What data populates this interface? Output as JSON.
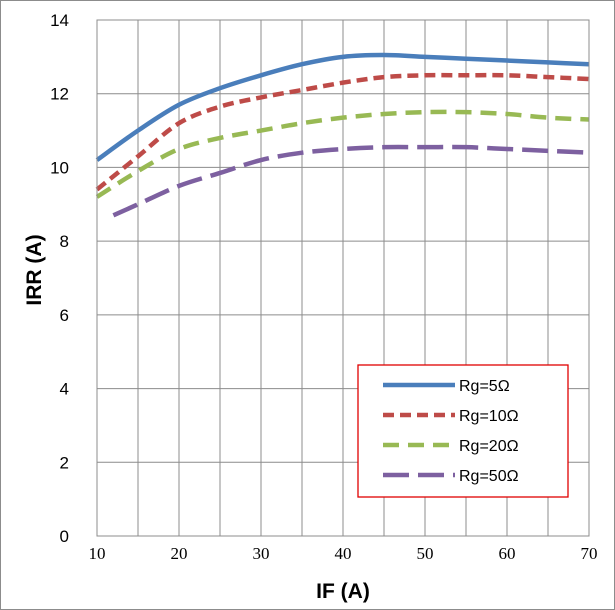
{
  "chart_data": {
    "type": "line",
    "xlabel": "IF  (A)",
    "ylabel": "IRR   (A)",
    "xlim": [
      10,
      70
    ],
    "ylim": [
      0,
      14
    ],
    "x_ticks": [
      "10",
      "20",
      "30",
      "40",
      "50",
      "60",
      "70"
    ],
    "y_ticks": [
      "0",
      "2",
      "4",
      "6",
      "8",
      "10",
      "12",
      "14"
    ],
    "grid": true,
    "legend_position": "bottom-right",
    "series": [
      {
        "name": "Rg=5Ω",
        "color": "#4a7ebb",
        "dash": "solid",
        "x": [
          10,
          15,
          20,
          25,
          30,
          35,
          40,
          45,
          50,
          55,
          60,
          65,
          70
        ],
        "y": [
          10.2,
          11.0,
          11.7,
          12.15,
          12.5,
          12.8,
          13.0,
          13.05,
          13.0,
          12.95,
          12.9,
          12.85,
          12.8
        ]
      },
      {
        "name": "Rg=10Ω",
        "color": "#be4b48",
        "dash": "short",
        "x": [
          10,
          15,
          20,
          25,
          30,
          35,
          40,
          45,
          50,
          55,
          60,
          65,
          70
        ],
        "y": [
          9.4,
          10.3,
          11.2,
          11.65,
          11.9,
          12.1,
          12.3,
          12.45,
          12.5,
          12.5,
          12.5,
          12.45,
          12.4
        ]
      },
      {
        "name": "Rg=20Ω",
        "color": "#98b954",
        "dash": "medium",
        "x": [
          10,
          15,
          20,
          25,
          30,
          35,
          40,
          45,
          50,
          55,
          60,
          65,
          70
        ],
        "y": [
          9.2,
          9.9,
          10.5,
          10.8,
          11.0,
          11.2,
          11.35,
          11.45,
          11.5,
          11.5,
          11.45,
          11.35,
          11.3
        ]
      },
      {
        "name": "Rg=50Ω",
        "color": "#7d60a0",
        "dash": "long",
        "x": [
          12,
          15,
          20,
          25,
          30,
          35,
          40,
          45,
          50,
          55,
          60,
          65,
          70
        ],
        "y": [
          8.7,
          9.0,
          9.5,
          9.85,
          10.2,
          10.4,
          10.5,
          10.55,
          10.55,
          10.55,
          10.5,
          10.45,
          10.4
        ]
      }
    ]
  }
}
